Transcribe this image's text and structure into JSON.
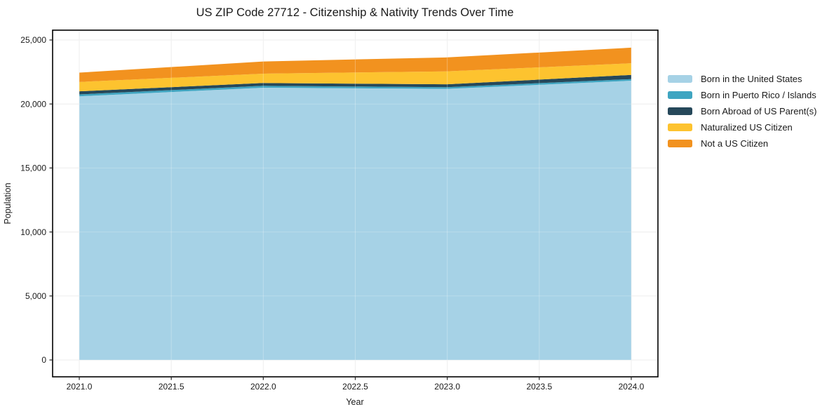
{
  "chart_data": {
    "type": "area",
    "stacked": true,
    "title": "US ZIP Code 27712 - Citizenship & Nativity Trends Over Time",
    "xlabel": "Year",
    "ylabel": "Population",
    "x": [
      2021,
      2022,
      2023,
      2024
    ],
    "series": [
      {
        "name": "Born in the United States",
        "color": "#a6d2e6",
        "values": [
          20600,
          21270,
          21180,
          21820
        ]
      },
      {
        "name": "Born in Puerto Rico / Islands",
        "color": "#3fa5c1",
        "values": [
          150,
          150,
          130,
          125
        ]
      },
      {
        "name": "Born Abroad of US Parent(s)",
        "color": "#26485a",
        "values": [
          240,
          220,
          230,
          325
        ]
      },
      {
        "name": "Naturalized US Citizen",
        "color": "#fdc32f",
        "values": [
          730,
          730,
          1010,
          910
        ]
      },
      {
        "name": "Not a US Citizen",
        "color": "#f2921f",
        "values": [
          730,
          950,
          1090,
          1220
        ]
      }
    ],
    "stacked_totals": [
      22450,
      23320,
      23640,
      24400
    ],
    "xticks": {
      "values": [
        2021.0,
        2021.5,
        2022.0,
        2022.5,
        2023.0,
        2023.5,
        2024.0
      ],
      "labels": [
        "2021.0",
        "2021.5",
        "2022.0",
        "2022.5",
        "2023.0",
        "2023.5",
        "2024.0"
      ]
    },
    "yticks": {
      "values": [
        0,
        5000,
        10000,
        15000,
        20000,
        25000
      ],
      "labels": [
        "0",
        "5,000",
        "10,000",
        "15,000",
        "20,000",
        "25,000"
      ]
    },
    "xlim": [
      2020.855,
      2024.145
    ],
    "ylim": [
      -1316,
      25767
    ],
    "grid": true,
    "legend_position": "center-right-outside",
    "colors": {
      "background": "#ffffff",
      "gridline": "#e9e9e9",
      "spine": "#000000",
      "tick": "#222222"
    }
  }
}
